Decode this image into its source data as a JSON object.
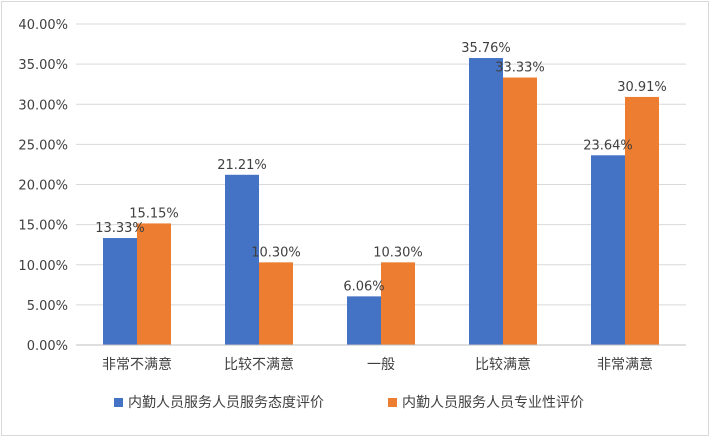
{
  "chart_data": {
    "type": "bar",
    "title": "",
    "xlabel": "",
    "ylabel": "",
    "ylim": [
      0,
      40
    ],
    "y_ticks": [
      "0.00%",
      "5.00%",
      "10.00%",
      "15.00%",
      "20.00%",
      "25.00%",
      "30.00%",
      "35.00%",
      "40.00%"
    ],
    "grid": "horizontal",
    "legend_position": "bottom",
    "categories": [
      "非常不满意",
      "比较不满意",
      "一般",
      "比较满意",
      "非常满意"
    ],
    "series": [
      {
        "name": "内勤人员服务人员服务态度评价",
        "color": "#4472c4",
        "values": [
          13.33,
          21.21,
          6.06,
          35.76,
          23.64
        ],
        "labels": [
          "13.33%",
          "21.21%",
          "6.06%",
          "35.76%",
          "23.64%"
        ]
      },
      {
        "name": "内勤人员服务人员专业性评价",
        "color": "#ed7d31",
        "values": [
          15.15,
          10.3,
          10.3,
          33.33,
          30.91
        ],
        "labels": [
          "15.15%",
          "10.30%",
          "10.30%",
          "33.33%",
          "30.91%"
        ]
      }
    ]
  }
}
